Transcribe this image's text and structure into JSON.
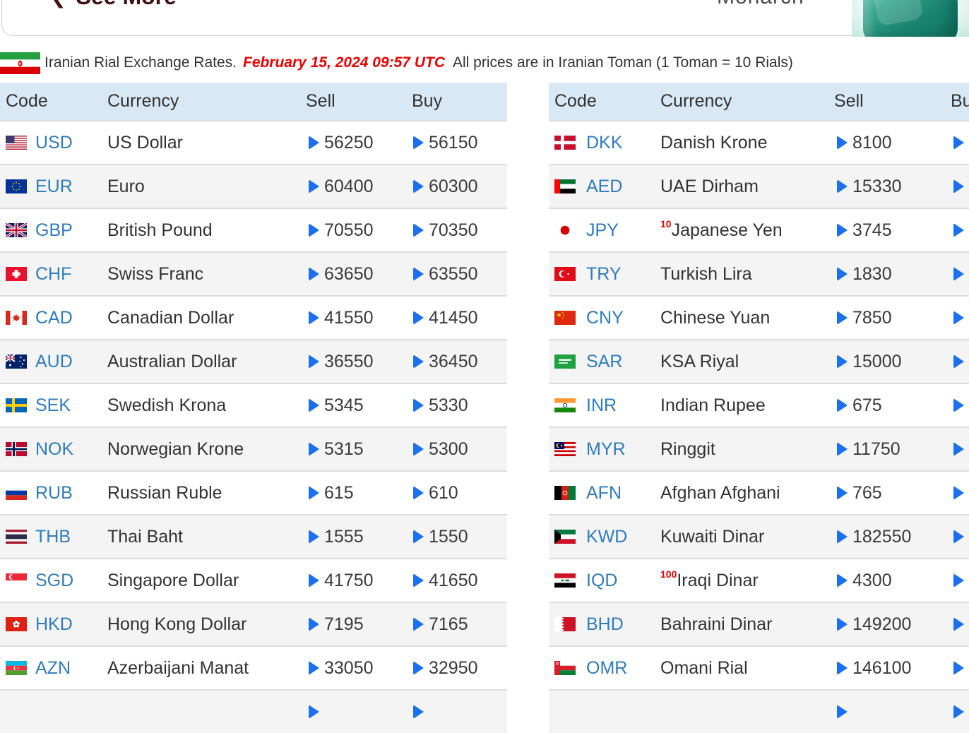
{
  "top_bar": {
    "back_chevron": "❮",
    "back_label": "See More",
    "brand_label": "Monarch"
  },
  "info_line": {
    "flag_icon": "iran-flag-icon",
    "prefix": "Iranian Rial Exchange Rates.",
    "timestamp": "February 15, 2024 09:57 UTC",
    "suffix": "All prices are in Iranian Toman (1 Toman = 10 Rials)"
  },
  "colors": {
    "header_bg": "#d8e9f5",
    "alt_row_bg": "#f4f4f4",
    "row_divider": "#dcdcdc",
    "code_link_blue": "#2e7cbf",
    "arrow_blue": "#1b70f0",
    "timestamp_red": "#ee0000",
    "multiplier_red": "#e90000",
    "text_dark": "#333333",
    "back_link_maroon": "#400f13",
    "brand_gray": "#4a4a4a",
    "gem_teal": "#1b8570"
  },
  "table_headers": [
    "Code",
    "Currency",
    "Sell",
    "Buy"
  ],
  "left_table": {
    "partial_next_row": true,
    "rows": [
      {
        "flag_icon": "usd-flag-icon",
        "code": "USD",
        "currency": "US Dollar",
        "multiplier": "",
        "sell": "56250",
        "buy": "56150"
      },
      {
        "flag_icon": "eur-flag-icon",
        "code": "EUR",
        "currency": "Euro",
        "multiplier": "",
        "sell": "60400",
        "buy": "60300"
      },
      {
        "flag_icon": "gbp-flag-icon",
        "code": "GBP",
        "currency": "British Pound",
        "multiplier": "",
        "sell": "70550",
        "buy": "70350"
      },
      {
        "flag_icon": "chf-flag-icon",
        "code": "CHF",
        "currency": "Swiss Franc",
        "multiplier": "",
        "sell": "63650",
        "buy": "63550"
      },
      {
        "flag_icon": "cad-flag-icon",
        "code": "CAD",
        "currency": "Canadian Dollar",
        "multiplier": "",
        "sell": "41550",
        "buy": "41450"
      },
      {
        "flag_icon": "aud-flag-icon",
        "code": "AUD",
        "currency": "Australian Dollar",
        "multiplier": "",
        "sell": "36550",
        "buy": "36450"
      },
      {
        "flag_icon": "sek-flag-icon",
        "code": "SEK",
        "currency": "Swedish Krona",
        "multiplier": "",
        "sell": "5345",
        "buy": "5330"
      },
      {
        "flag_icon": "nok-flag-icon",
        "code": "NOK",
        "currency": "Norwegian Krone",
        "multiplier": "",
        "sell": "5315",
        "buy": "5300"
      },
      {
        "flag_icon": "rub-flag-icon",
        "code": "RUB",
        "currency": "Russian Ruble",
        "multiplier": "",
        "sell": "615",
        "buy": "610"
      },
      {
        "flag_icon": "thb-flag-icon",
        "code": "THB",
        "currency": "Thai Baht",
        "multiplier": "",
        "sell": "1555",
        "buy": "1550"
      },
      {
        "flag_icon": "sgd-flag-icon",
        "code": "SGD",
        "currency": "Singapore Dollar",
        "multiplier": "",
        "sell": "41750",
        "buy": "41650"
      },
      {
        "flag_icon": "hkd-flag-icon",
        "code": "HKD",
        "currency": "Hong Kong Dollar",
        "multiplier": "",
        "sell": "7195",
        "buy": "7165"
      },
      {
        "flag_icon": "azn-flag-icon",
        "code": "AZN",
        "currency": "Azerbaijani Manat",
        "multiplier": "",
        "sell": "33050",
        "buy": "32950"
      }
    ]
  },
  "right_table": {
    "partial_next_row": true,
    "rows": [
      {
        "flag_icon": "dkk-flag-icon",
        "code": "DKK",
        "currency": "Danish Krone",
        "multiplier": "",
        "sell": "8100",
        "buy": ""
      },
      {
        "flag_icon": "aed-flag-icon",
        "code": "AED",
        "currency": "UAE Dirham",
        "multiplier": "",
        "sell": "15330",
        "buy": ""
      },
      {
        "flag_icon": "jpy-flag-icon",
        "code": "JPY",
        "currency": "Japanese Yen",
        "multiplier": "10",
        "sell": "3745",
        "buy": ""
      },
      {
        "flag_icon": "try-flag-icon",
        "code": "TRY",
        "currency": "Turkish Lira",
        "multiplier": "",
        "sell": "1830",
        "buy": ""
      },
      {
        "flag_icon": "cny-flag-icon",
        "code": "CNY",
        "currency": "Chinese Yuan",
        "multiplier": "",
        "sell": "7850",
        "buy": ""
      },
      {
        "flag_icon": "sar-flag-icon",
        "code": "SAR",
        "currency": "KSA Riyal",
        "multiplier": "",
        "sell": "15000",
        "buy": ""
      },
      {
        "flag_icon": "inr-flag-icon",
        "code": "INR",
        "currency": "Indian Rupee",
        "multiplier": "",
        "sell": "675",
        "buy": ""
      },
      {
        "flag_icon": "myr-flag-icon",
        "code": "MYR",
        "currency": "Ringgit",
        "multiplier": "",
        "sell": "11750",
        "buy": ""
      },
      {
        "flag_icon": "afn-flag-icon",
        "code": "AFN",
        "currency": "Afghan Afghani",
        "multiplier": "",
        "sell": "765",
        "buy": ""
      },
      {
        "flag_icon": "kwd-flag-icon",
        "code": "KWD",
        "currency": "Kuwaiti Dinar",
        "multiplier": "",
        "sell": "182550",
        "buy": ""
      },
      {
        "flag_icon": "iqd-flag-icon",
        "code": "IQD",
        "currency": "Iraqi Dinar",
        "multiplier": "100",
        "sell": "4300",
        "buy": ""
      },
      {
        "flag_icon": "bhd-flag-icon",
        "code": "BHD",
        "currency": "Bahraini Dinar",
        "multiplier": "",
        "sell": "149200",
        "buy": ""
      },
      {
        "flag_icon": "omr-flag-icon",
        "code": "OMR",
        "currency": "Omani Rial",
        "multiplier": "",
        "sell": "146100",
        "buy": ""
      }
    ]
  }
}
